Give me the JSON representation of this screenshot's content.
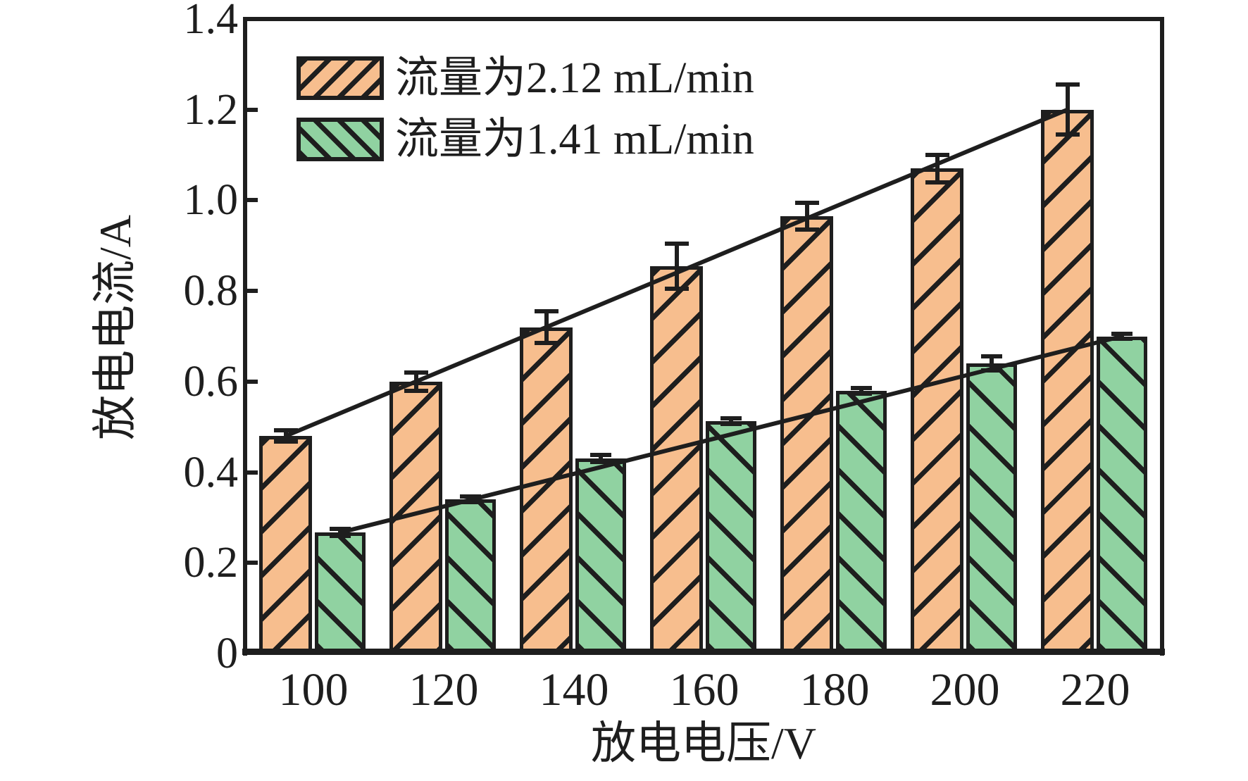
{
  "figure": {
    "x_axis_title": "放电电压/V",
    "y_axis_title": "放电电流/A",
    "y_tick_labels": [
      "1.4",
      "1.2",
      "1.0",
      "0.8",
      "0.6",
      "0.4",
      "0.2",
      "0"
    ],
    "y_tick_values": [
      1.4,
      1.2,
      1.0,
      0.8,
      0.6,
      0.4,
      0.2,
      0
    ],
    "inner_tick_values": [
      1.2,
      1.0,
      0.8,
      0.6,
      0.4,
      0.2
    ],
    "ink_color": "#1e1e1e",
    "background_color": "#ffffff"
  },
  "legend": {
    "items": [
      {
        "label": "流量为2.12 mL/min",
        "color": "#F7BE8E",
        "hatch": "/"
      },
      {
        "label": "流量为1.41 mL/min",
        "color": "#90D2A1",
        "hatch": "\\"
      }
    ]
  },
  "chart_data": {
    "type": "bar",
    "title": "",
    "xlabel": "放电电压/V",
    "ylabel": "放电电流/A",
    "categories": [
      100,
      120,
      140,
      160,
      180,
      200,
      220
    ],
    "series": [
      {
        "name": "流量为2.12 mL/min",
        "color": "#F7BE8E",
        "hatch": "/",
        "values": [
          0.48,
          0.6,
          0.72,
          0.855,
          0.965,
          1.07,
          1.2
        ],
        "errors": [
          0.012,
          0.02,
          0.035,
          0.05,
          0.03,
          0.03,
          0.055
        ],
        "trend_line": true
      },
      {
        "name": "流量为1.41 mL/min",
        "color": "#90D2A1",
        "hatch": "\\",
        "values": [
          0.267,
          0.34,
          0.43,
          0.513,
          0.58,
          0.64,
          0.7
        ],
        "errors": [
          0.008,
          0.006,
          0.008,
          0.006,
          0.006,
          0.015,
          0.006
        ],
        "trend_line": true
      }
    ],
    "ylim": [
      0,
      1.4
    ],
    "y_ticks": [
      0,
      0.2,
      0.4,
      0.6,
      0.8,
      1.0,
      1.2,
      1.4
    ],
    "grid": false,
    "legend_position": "upper-left",
    "error_bars": true
  }
}
